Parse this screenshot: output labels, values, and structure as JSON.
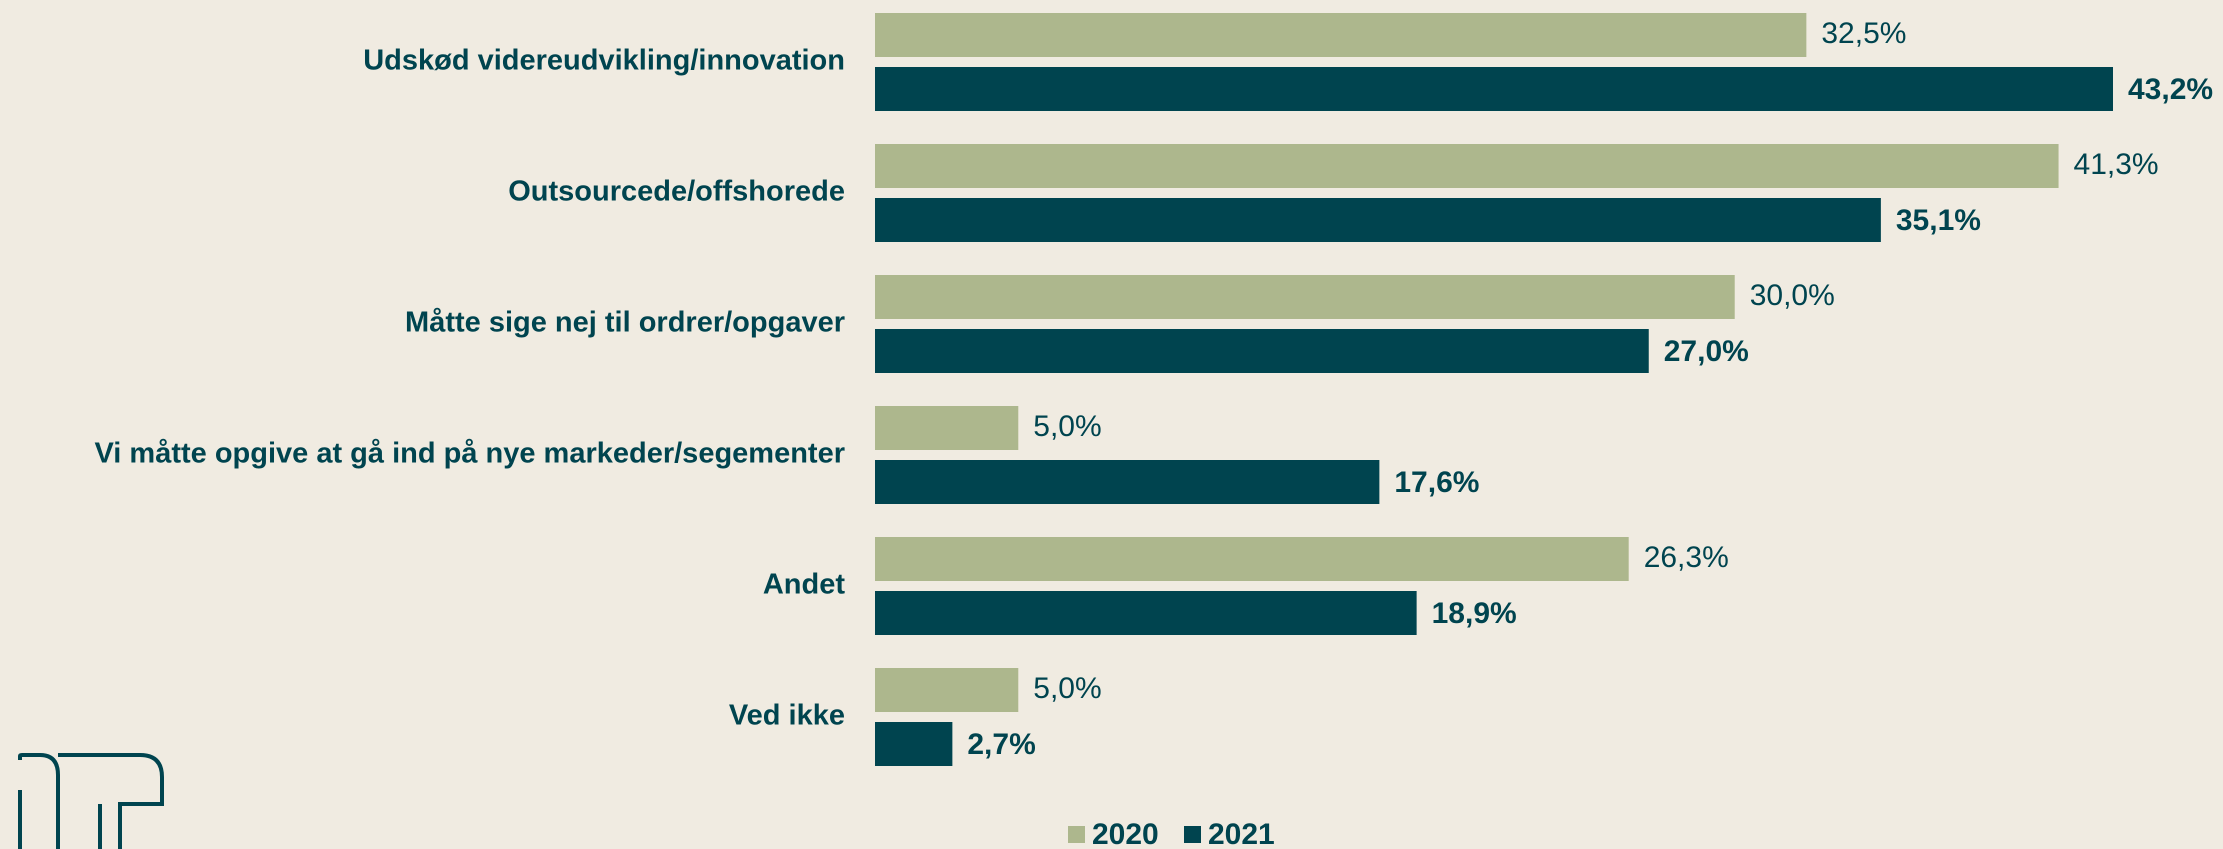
{
  "chart_data": {
    "type": "bar",
    "orientation": "horizontal",
    "categories": [
      "Udskød videreudvikling/innovation",
      "Outsourcede/offshorede",
      "Måtte sige nej til ordrer/opgaver",
      "Vi måtte opgive at gå ind på nye markeder/segementer",
      "Andet",
      "Ved ikke"
    ],
    "series": [
      {
        "name": "2020",
        "color": "#adb78d",
        "values": [
          32.5,
          41.3,
          30.0,
          5.0,
          26.3,
          5.0
        ],
        "value_labels": [
          "32,5%",
          "41,3%",
          "30,0%",
          "5,0%",
          "26,3%",
          "5,0%"
        ]
      },
      {
        "name": "2021",
        "color": "#00444f",
        "values": [
          43.2,
          35.1,
          27.0,
          17.6,
          18.9,
          2.7
        ],
        "value_labels": [
          "43,2%",
          "35,1%",
          "27,0%",
          "17,6%",
          "18,9%",
          "2,7%"
        ]
      }
    ],
    "legend": "bottom"
  }
}
